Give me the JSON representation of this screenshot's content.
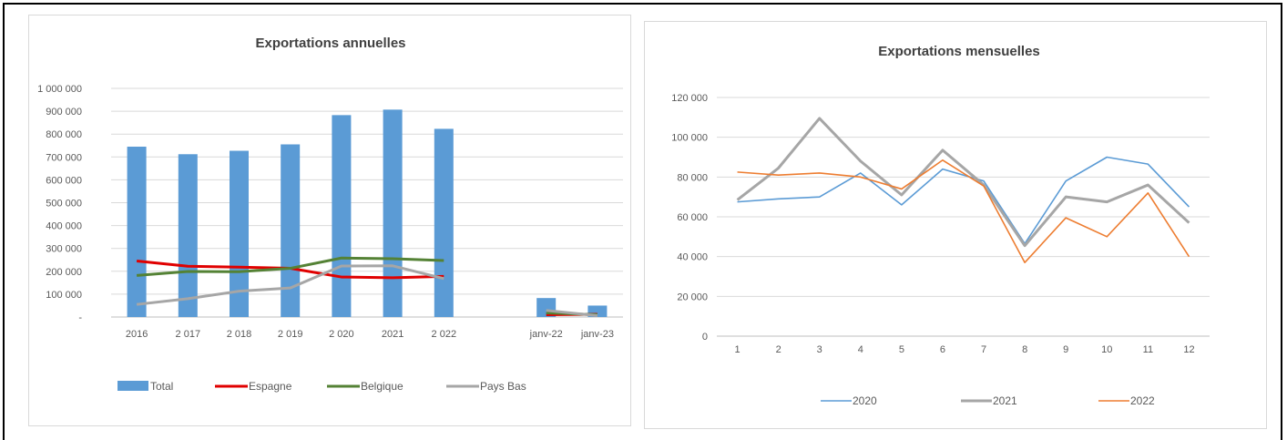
{
  "chart_data": [
    {
      "type": "bar",
      "title": "Exportations annuelles",
      "categories": [
        "2016",
        "2 017",
        "2 018",
        "2 019",
        "2 020",
        "2021",
        "2 022",
        "",
        "janv-22",
        "janv-23"
      ],
      "ylim": [
        0,
        1000000
      ],
      "y_ticks": [
        "-",
        "100 000",
        "200 000",
        "300 000",
        "400 000",
        "500 000",
        "600 000",
        "700 000",
        "800 000",
        "900 000",
        "1 000 000"
      ],
      "grid": true,
      "legend_position": "bottom",
      "series": [
        {
          "name": "Total",
          "type": "bar",
          "color": "#5b9bd5",
          "values": [
            745000,
            712000,
            727000,
            755000,
            883000,
            907000,
            823000,
            null,
            83000,
            50000
          ]
        },
        {
          "name": "Espagne",
          "type": "line",
          "color": "#e00000",
          "values": [
            245000,
            222000,
            218000,
            213000,
            175000,
            172000,
            178000,
            null,
            10000,
            12000
          ]
        },
        {
          "name": "Belgique",
          "type": "line",
          "color": "#548235",
          "values": [
            182000,
            199000,
            198000,
            213000,
            258000,
            255000,
            247000,
            null,
            18000,
            10000
          ]
        },
        {
          "name": "Pays Bas",
          "type": "line",
          "color": "#a6a6a6",
          "values": [
            55000,
            80000,
            113000,
            127000,
            223000,
            224000,
            168000,
            null,
            29000,
            6000
          ]
        }
      ]
    },
    {
      "type": "line",
      "title": "Exportations mensuelles",
      "x": [
        "1",
        "2",
        "3",
        "4",
        "5",
        "6",
        "7",
        "8",
        "9",
        "10",
        "11",
        "12"
      ],
      "ylim": [
        0,
        120000
      ],
      "y_ticks": [
        "0",
        "20 000",
        "40 000",
        "60 000",
        "80 000",
        "100 000",
        "120 000"
      ],
      "grid": true,
      "legend_position": "bottom",
      "series": [
        {
          "name": "2020",
          "color": "#5b9bd5",
          "values": [
            67500,
            69000,
            70000,
            82000,
            66000,
            84000,
            78000,
            46500,
            78000,
            90000,
            86500,
            65000
          ]
        },
        {
          "name": "2021",
          "color": "#a6a6a6",
          "values": [
            68500,
            84500,
            109500,
            88000,
            71000,
            93500,
            76000,
            45500,
            70000,
            67500,
            76000,
            57000
          ]
        },
        {
          "name": "2022",
          "color": "#ed7d31",
          "values": [
            82500,
            81000,
            82000,
            80000,
            74000,
            88500,
            75500,
            37000,
            59500,
            50000,
            72000,
            40000
          ]
        }
      ]
    }
  ]
}
